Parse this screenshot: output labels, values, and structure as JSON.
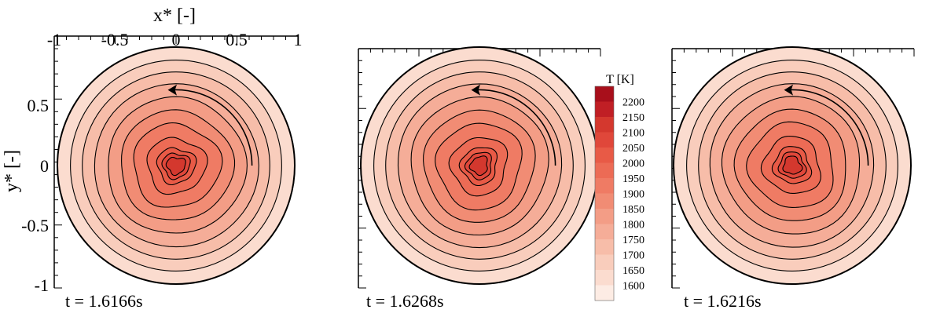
{
  "chart_data": {
    "type": "heatmap",
    "xlabel": "x* [-]",
    "ylabel": "y* [-]",
    "xlim": [
      -1,
      1
    ],
    "ylim": [
      -1,
      1
    ],
    "x_ticks": [
      "-1",
      "-0.5",
      "0",
      "0.5",
      "1"
    ],
    "y_ticks": [
      "-1",
      "-0.5",
      "0",
      "0.5"
    ],
    "colorbar": {
      "title": "T [K]",
      "levels": [
        "2200",
        "2150",
        "2100",
        "2050",
        "2000",
        "1950",
        "1900",
        "1850",
        "1800",
        "1750",
        "1700",
        "1650",
        "1600"
      ],
      "colors": [
        "#a80f1b",
        "#c01f25",
        "#d4382e",
        "#e0473a",
        "#e85a46",
        "#ec6b55",
        "#ef7b64",
        "#f18c74",
        "#f39d86",
        "#f5ad98",
        "#f7bda9",
        "#f9cdbc",
        "#fbdccf",
        "#fdece4"
      ]
    },
    "panels": [
      {
        "time_label": "t = 1.6166s"
      },
      {
        "time_label": "t = 1.6268s"
      },
      {
        "time_label": "t = 1.6216s"
      }
    ]
  }
}
